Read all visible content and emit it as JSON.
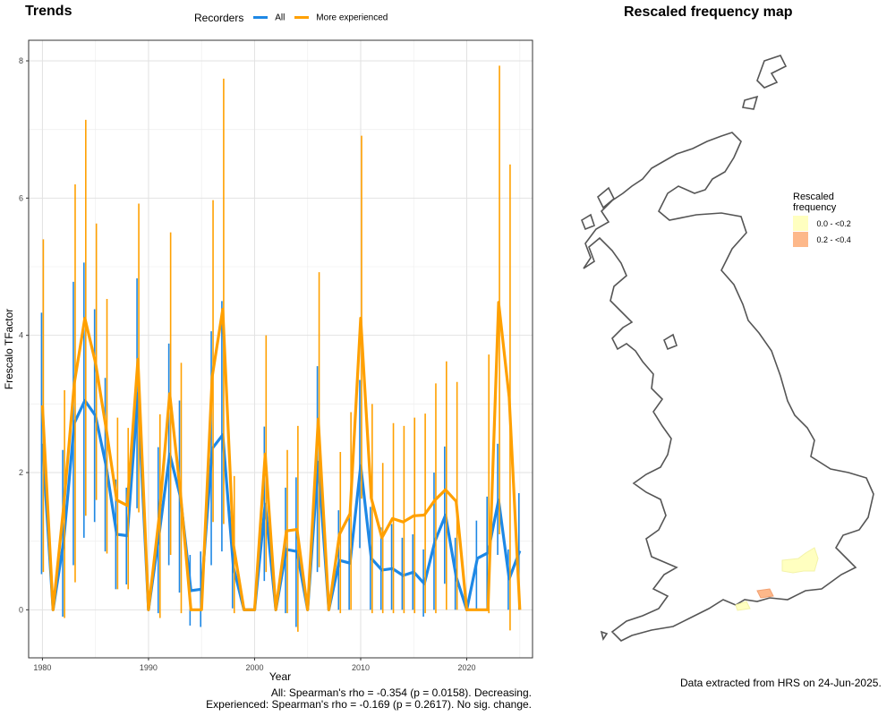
{
  "left_panel": {
    "title": "Trends",
    "legend": {
      "title": "Recorders",
      "entries": [
        {
          "label": "All",
          "color": "#1e88e5"
        },
        {
          "label": "More experienced",
          "color": "#ffa000"
        }
      ]
    },
    "stats": {
      "line1": "All: Spearman's rho = -0.354 (p = 0.0158). Decreasing.",
      "line2": "Experienced: Spearman's rho = -0.169 (p = 0.2617). No sig. change."
    }
  },
  "right_panel": {
    "title": "Rescaled frequency map",
    "legend": {
      "title_line1": "Rescaled",
      "title_line2": "frequency",
      "entries": [
        {
          "label": "0.0 - <0.2",
          "color": "#ffffc0"
        },
        {
          "label": "0.2 - <0.4",
          "color": "#fdb88a"
        }
      ]
    },
    "footer": "Data extracted from HRS on 24-Jun-2025."
  },
  "chart_data": {
    "type": "line",
    "title": "Trends",
    "xlabel": "Year",
    "ylabel": "Frescalo TFactor",
    "xlim": [
      1978.7,
      2026.2
    ],
    "ylim": [
      -0.7,
      8.3
    ],
    "x_ticks": [
      1980,
      1990,
      2000,
      2010,
      2020
    ],
    "y_ticks": [
      0,
      2,
      4,
      6,
      8
    ],
    "grid": true,
    "legend_position": "top",
    "x": [
      1980,
      1981,
      1982,
      1983,
      1984,
      1985,
      1986,
      1987,
      1988,
      1989,
      1990,
      1991,
      1992,
      1993,
      1994,
      1995,
      1996,
      1997,
      1998,
      1999,
      2000,
      2001,
      2002,
      2003,
      2004,
      2005,
      2006,
      2007,
      2008,
      2009,
      2010,
      2011,
      2012,
      2013,
      2014,
      2015,
      2016,
      2017,
      2018,
      2019,
      2020,
      2021,
      2022,
      2023,
      2024,
      2025
    ],
    "series": [
      {
        "name": "All",
        "color": "#1e88e5",
        "values": [
          2.42,
          0.0,
          1.0,
          2.72,
          3.05,
          2.83,
          2.1,
          1.1,
          1.08,
          3.15,
          0.0,
          1.1,
          2.27,
          1.65,
          0.28,
          0.3,
          2.35,
          2.55,
          0.62,
          0.0,
          0.0,
          1.54,
          0.0,
          0.88,
          0.85,
          0.0,
          2.15,
          0.0,
          0.72,
          0.68,
          2.1,
          0.75,
          0.58,
          0.6,
          0.5,
          0.55,
          0.38,
          1.0,
          1.38,
          0.48,
          0.0,
          0.75,
          0.83,
          1.6,
          0.45,
          0.86
        ],
        "lower": [
          0.52,
          0.0,
          -0.1,
          0.65,
          1.05,
          1.28,
          0.85,
          0.3,
          0.37,
          1.48,
          0.0,
          -0.05,
          0.65,
          0.25,
          -0.23,
          -0.25,
          0.65,
          0.85,
          0.02,
          0.0,
          0.0,
          0.42,
          0.0,
          -0.05,
          -0.25,
          0.0,
          0.55,
          0.0,
          0.0,
          0.0,
          0.9,
          0.0,
          0.0,
          0.0,
          0.0,
          0.0,
          -0.1,
          0.0,
          0.38,
          0.0,
          0.0,
          0.0,
          0.0,
          0.8,
          0.0,
          0.0
        ],
        "upper": [
          4.33,
          0.0,
          2.33,
          4.78,
          5.06,
          4.38,
          3.38,
          1.9,
          1.78,
          4.83,
          0.0,
          2.37,
          3.88,
          3.05,
          0.8,
          0.85,
          4.06,
          4.5,
          1.25,
          0.0,
          0.0,
          2.67,
          0.0,
          1.78,
          1.93,
          0.0,
          3.55,
          0.0,
          1.45,
          1.4,
          3.35,
          1.5,
          1.2,
          1.25,
          1.05,
          1.1,
          0.88,
          2.0,
          2.38,
          1.05,
          0.0,
          1.3,
          1.65,
          2.42,
          0.88,
          1.7
        ]
      },
      {
        "name": "More experienced",
        "color": "#ffa000",
        "values": [
          2.98,
          0.0,
          1.5,
          3.3,
          4.25,
          3.6,
          2.65,
          1.6,
          1.52,
          3.65,
          0.0,
          1.35,
          3.15,
          1.72,
          0.0,
          0.0,
          3.4,
          4.38,
          0.95,
          0.0,
          0.0,
          2.27,
          0.0,
          1.15,
          1.17,
          0.0,
          2.78,
          0.0,
          1.1,
          1.4,
          4.25,
          1.63,
          1.05,
          1.33,
          1.28,
          1.37,
          1.38,
          1.6,
          1.75,
          1.58,
          0.0,
          0.0,
          0.0,
          4.48,
          3.1,
          0.0
        ],
        "lower": [
          0.55,
          0.0,
          -0.12,
          0.4,
          1.37,
          1.6,
          0.82,
          0.3,
          0.3,
          1.42,
          0.0,
          -0.12,
          0.8,
          -0.05,
          0.0,
          0.0,
          1.28,
          1.25,
          -0.05,
          0.0,
          0.0,
          0.55,
          0.0,
          -0.05,
          -0.32,
          0.0,
          0.62,
          0.0,
          -0.05,
          0.0,
          1.62,
          -0.05,
          -0.05,
          -0.05,
          -0.05,
          -0.05,
          -0.05,
          -0.05,
          0.0,
          0.0,
          0.0,
          0.0,
          -0.05,
          1.1,
          -0.3,
          0.0
        ],
        "upper": [
          5.4,
          0.0,
          3.2,
          6.2,
          7.14,
          5.63,
          4.53,
          2.8,
          2.65,
          5.92,
          0.0,
          2.85,
          5.5,
          3.6,
          0.0,
          0.0,
          5.97,
          7.74,
          1.95,
          0.0,
          0.0,
          4.0,
          0.0,
          2.33,
          2.68,
          0.0,
          4.92,
          0.0,
          2.3,
          2.88,
          6.91,
          3.0,
          2.14,
          2.72,
          2.68,
          2.8,
          2.86,
          3.3,
          3.62,
          3.32,
          0.0,
          0.0,
          3.72,
          7.93,
          6.49,
          0.0
        ]
      }
    ]
  }
}
